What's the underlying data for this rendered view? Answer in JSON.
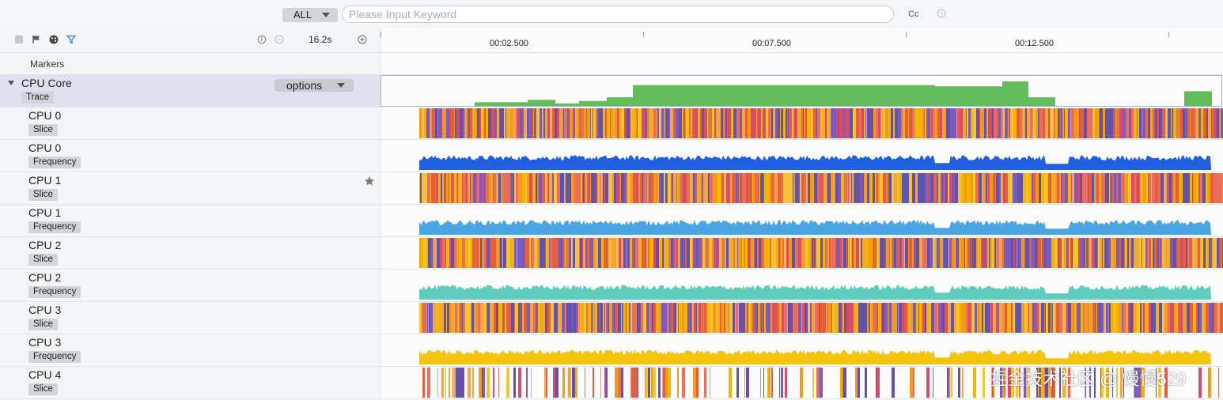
{
  "search": {
    "filter_label": "ALL",
    "placeholder": "Please Input Keyword",
    "value": "",
    "case_toggle": "Cc",
    "history_icon": "history-icon"
  },
  "toolbar": {
    "icons": [
      "square-icon",
      "flag-icon",
      "dice-icon",
      "filter-icon",
      "time-reset-icon",
      "zoom-out-icon",
      "zoom-in-icon"
    ],
    "duration": "16.2s"
  },
  "markers": {
    "label": "Markers"
  },
  "ruler": {
    "ticks": [
      "00:02.500",
      "00:07.500",
      "00:12.500"
    ]
  },
  "cpu_core": {
    "name": "CPU Core",
    "tag": "Trace",
    "options_label": "options",
    "bars_color": "#63bb5a"
  },
  "rows": [
    {
      "name": "CPU 0",
      "tag": "Slice",
      "kind": "slice",
      "density": 1.0
    },
    {
      "name": "CPU 0",
      "tag": "Frequency",
      "kind": "freq",
      "color": "#1f5fe0"
    },
    {
      "name": "CPU 1",
      "tag": "Slice",
      "kind": "slice",
      "density": 1.0,
      "starred": true
    },
    {
      "name": "CPU 1",
      "tag": "Frequency",
      "kind": "freq",
      "color": "#4aa6e3"
    },
    {
      "name": "CPU 2",
      "tag": "Slice",
      "kind": "slice",
      "density": 1.0
    },
    {
      "name": "CPU 2",
      "tag": "Frequency",
      "kind": "freq",
      "color": "#5fcdbc"
    },
    {
      "name": "CPU 3",
      "tag": "Slice",
      "kind": "slice",
      "density": 1.0
    },
    {
      "name": "CPU 3",
      "tag": "Frequency",
      "kind": "freq",
      "color": "#f3c40e"
    },
    {
      "name": "CPU 4",
      "tag": "Slice",
      "kind": "slice",
      "density": 0.35
    }
  ],
  "slice_palette": [
    "#f4b400",
    "#e85d3a",
    "#6a4fa8",
    "#f39c12",
    "#d94b6a",
    "#5b55b5",
    "#f0a83a",
    "#ea6f5a",
    "#7a5cc0",
    "#f7c32e"
  ],
  "watermark": "掘金技术社区 @ 慢慢529"
}
